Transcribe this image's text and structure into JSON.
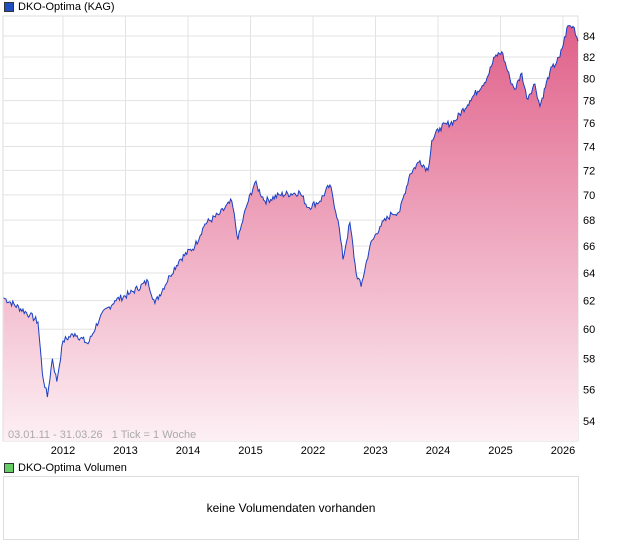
{
  "title": "DKO-Optima (KAG)",
  "volume_title": "DKO-Optima Volumen",
  "volume_message": "keine Volumendaten vorhanden",
  "colors": {
    "line": "#1a3fc0",
    "fill_top": "#e0608a",
    "fill_bottom": "#fdf0f4",
    "price_swatch": "#1f4fbf",
    "volume_swatch": "#66cc66"
  },
  "chart_data": {
    "type": "area",
    "info": "03.01.11 - 31.03.26   1 Tick = 1 Woche",
    "x_ticks": [
      "2012",
      "2013",
      "2014",
      "2015",
      "2022",
      "2023",
      "2024",
      "2025",
      "2026"
    ],
    "y_ticks": [
      54,
      56,
      58,
      60,
      62,
      64,
      66,
      68,
      70,
      72,
      74,
      76,
      78,
      80,
      82,
      84
    ],
    "y_scale": "log",
    "ylim": [
      52.5,
      86
    ],
    "xlim": [
      0.04,
      9.26
    ],
    "series": [
      {
        "name": "DKO-Optima",
        "points": [
          [
            0.05,
            62.2
          ],
          [
            0.47,
            61
          ],
          [
            0.6,
            60.5
          ],
          [
            0.67,
            57
          ],
          [
            0.75,
            55.5
          ],
          [
            0.83,
            58
          ],
          [
            0.9,
            56.5
          ],
          [
            1.0,
            59.2
          ],
          [
            1.19,
            59.7
          ],
          [
            1.4,
            59
          ],
          [
            1.59,
            60.8
          ],
          [
            1.83,
            62
          ],
          [
            2.07,
            62.5
          ],
          [
            2.36,
            63.4
          ],
          [
            2.47,
            61.8
          ],
          [
            2.71,
            63.8
          ],
          [
            2.87,
            65
          ],
          [
            3.11,
            66
          ],
          [
            3.27,
            67.7
          ],
          [
            3.51,
            68.5
          ],
          [
            3.7,
            69.5
          ],
          [
            3.8,
            66.5
          ],
          [
            3.93,
            69
          ],
          [
            4.07,
            71
          ],
          [
            4.23,
            69.5
          ],
          [
            4.47,
            70
          ],
          [
            4.79,
            70.2
          ],
          [
            4.92,
            69
          ],
          [
            5.11,
            69.5
          ],
          [
            5.27,
            70.8
          ],
          [
            5.4,
            68
          ],
          [
            5.48,
            65
          ],
          [
            5.59,
            67.8
          ],
          [
            5.69,
            64
          ],
          [
            5.77,
            63
          ],
          [
            5.91,
            66
          ],
          [
            6.07,
            67.5
          ],
          [
            6.26,
            68.5
          ],
          [
            6.39,
            68.7
          ],
          [
            6.55,
            71.7
          ],
          [
            6.71,
            72.8
          ],
          [
            6.84,
            72
          ],
          [
            6.9,
            74.5
          ],
          [
            7.03,
            75.6
          ],
          [
            7.27,
            76.2
          ],
          [
            7.51,
            78
          ],
          [
            7.78,
            80
          ],
          [
            7.91,
            82
          ],
          [
            8.02,
            82.5
          ],
          [
            8.15,
            80
          ],
          [
            8.23,
            79
          ],
          [
            8.34,
            80.5
          ],
          [
            8.42,
            78.2
          ],
          [
            8.55,
            79.5
          ],
          [
            8.63,
            77.5
          ],
          [
            8.79,
            80.6
          ],
          [
            8.95,
            82
          ],
          [
            9.08,
            85
          ],
          [
            9.18,
            84.8
          ],
          [
            9.24,
            83.5
          ]
        ]
      }
    ]
  }
}
